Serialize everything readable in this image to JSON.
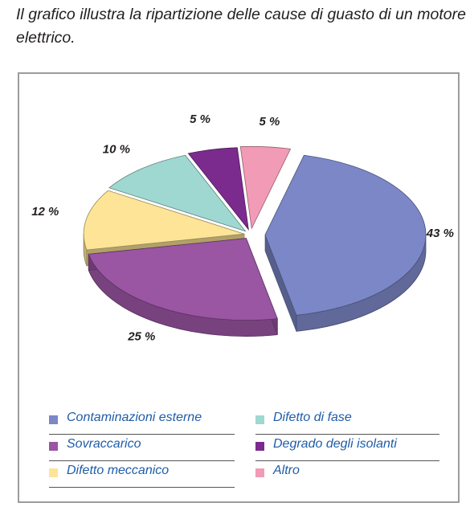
{
  "caption": "Il grafico illustra la ripartizione delle cause di guasto di un motore elettrico.",
  "chart_data": {
    "type": "pie",
    "title": "",
    "slices": [
      {
        "label": "Contaminazioni esterne",
        "value": 43,
        "display": "43 %",
        "color": "#7b87c6"
      },
      {
        "label": "Sovraccarico",
        "value": 25,
        "display": "25 %",
        "color": "#9a55a3"
      },
      {
        "label": "Difetto meccanico",
        "value": 12,
        "display": "12 %",
        "color": "#fde496"
      },
      {
        "label": "Difetto di fase",
        "value": 10,
        "display": "10 %",
        "color": "#9fd8d1"
      },
      {
        "label": "Degrado degli isolanti",
        "value": 5,
        "display": "5 %",
        "color": "#7b2b8e"
      },
      {
        "label": "Altro",
        "value": 5,
        "display": "5 %",
        "color": "#f29bb6"
      }
    ],
    "legend_placement": "bottom",
    "three_d": true
  },
  "legend": [
    {
      "label": "Contaminazioni esterne",
      "color": "#7b87c6"
    },
    {
      "label": "Difetto di fase",
      "color": "#9fd8d1"
    },
    {
      "label": "Sovraccarico",
      "color": "#9a55a3"
    },
    {
      "label": "Degrado degli isolanti",
      "color": "#7b2b8e"
    },
    {
      "label": "Difetto meccanico",
      "color": "#fde496"
    },
    {
      "label": "Altro",
      "color": "#f29bb6"
    }
  ]
}
